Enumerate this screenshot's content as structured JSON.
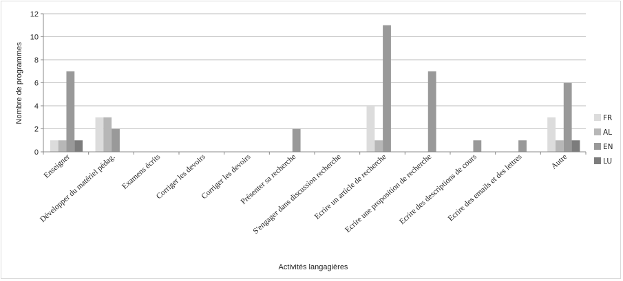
{
  "chart_data": {
    "type": "bar",
    "xlabel": "Activités langagières",
    "ylabel": "Nombre de programmes",
    "ylim": [
      0,
      12
    ],
    "yticks": [
      0,
      2,
      4,
      6,
      8,
      10,
      12
    ],
    "grid": true,
    "legend_position": "right",
    "categories": [
      "Enseigner",
      "Développer du matériel pédag.",
      "Examens écrits",
      "Corriger les devoirs",
      "Corriger les devoirs",
      "Présenter sa recherche",
      "S'engager dans discussion recherche",
      "Ecrire un article de recherche",
      "Ecrire une proposition de recherche",
      "Ecrire des descriptions de cours",
      "Ecrire des emails et des lettres",
      "Autre"
    ],
    "series": [
      {
        "name": "FR",
        "color": "#dcdcdc",
        "values": [
          1,
          3,
          0,
          0,
          0,
          0,
          0,
          4,
          0,
          0,
          0,
          3
        ]
      },
      {
        "name": "AL",
        "color": "#b7b7b7",
        "values": [
          1,
          3,
          0,
          0,
          0,
          0,
          0,
          1,
          0,
          0,
          0,
          1
        ]
      },
      {
        "name": "EN",
        "color": "#999999",
        "values": [
          7,
          2,
          0,
          0,
          0,
          2,
          0,
          11,
          7,
          1,
          1,
          6
        ]
      },
      {
        "name": "LU",
        "color": "#7c7c7c",
        "values": [
          1,
          0,
          0,
          0,
          0,
          0,
          0,
          0,
          0,
          0,
          0,
          1
        ]
      }
    ]
  }
}
